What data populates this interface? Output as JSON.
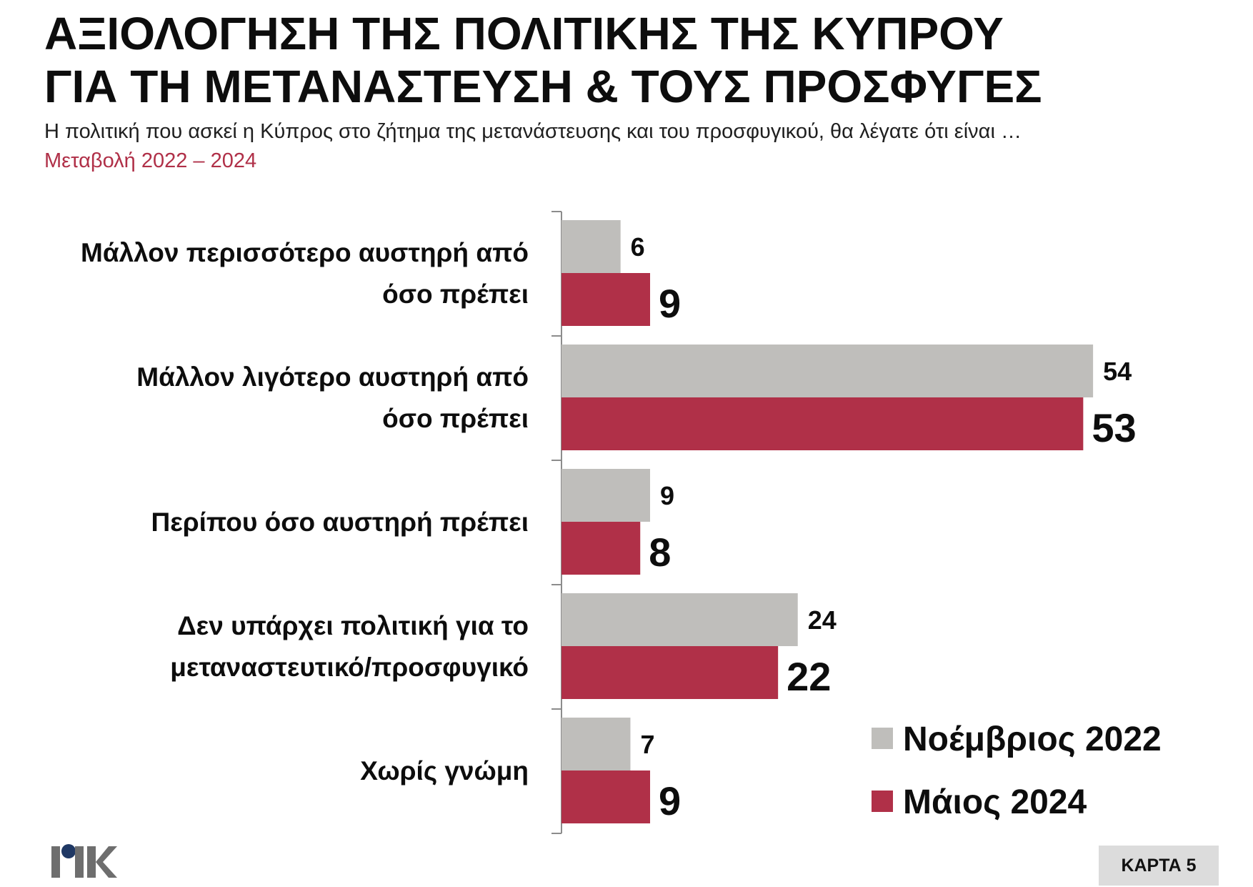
{
  "header": {
    "title_line1": "ΑΞΙΟΛΟΓΗΣΗ ΤΗΣ ΠΟΛΙΤΙΚΗΣ ΤΗΣ ΚΥΠΡΟΥ",
    "title_line2": "ΓΙΑ ΤΗ ΜΕΤΑΝΑΣΤΕΥΣΗ & ΤΟΥΣ ΠΡΟΣΦΥΓΕΣ",
    "question": "Η πολιτική που ασκεί η Κύπρος στο ζήτημα της μετανάστευσης και του προσφυγικού, θα λέγατε ότι είναι …",
    "change_label": "Μεταβολή 2022 – 2024",
    "change_color": "#b03048"
  },
  "chart_data": {
    "type": "bar",
    "orientation": "horizontal",
    "categories": [
      [
        "Μάλλον περισσότερο αυστηρή από",
        "όσο πρέπει"
      ],
      [
        "Μάλλον λιγότερο αυστηρή από",
        "όσο πρέπει"
      ],
      [
        "Περίπου όσο αυστηρή πρέπει"
      ],
      [
        "Δεν υπάρχει πολιτική για το",
        "μεταναστευτικό/προσφυγικό"
      ],
      [
        "Χωρίς γνώμη"
      ]
    ],
    "series": [
      {
        "name": "Νοέμβριος 2022",
        "values": [
          6,
          54,
          9,
          24,
          7
        ],
        "color": "#bfbebb"
      },
      {
        "name": "Μάιος 2024",
        "values": [
          9,
          53,
          8,
          22,
          9
        ],
        "color": "#b03048"
      }
    ],
    "xlim": [
      0,
      60
    ],
    "grid": false,
    "legend_position": "bottom-right"
  },
  "footer": {
    "logo_text": "ΡΙΚ",
    "card_label": "ΚΑΡΤΑ 5"
  }
}
